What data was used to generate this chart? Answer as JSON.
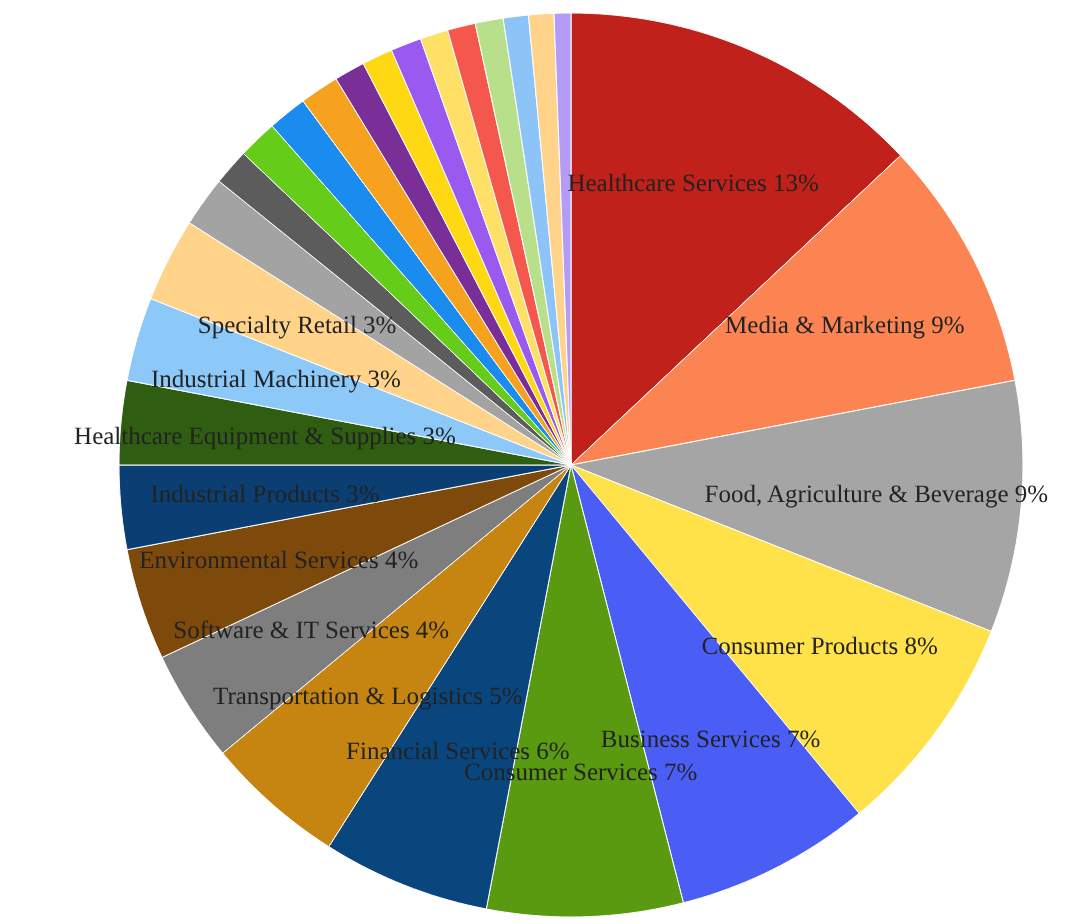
{
  "chart_data": {
    "type": "pie",
    "categories": [
      "Healthcare Services",
      "Media & Marketing",
      "Food, Agriculture & Beverage",
      "Consumer Products",
      "Business Services",
      "Consumer Services",
      "Financial Services",
      "Transportation & Logistics",
      "Software & IT Services",
      "Environmental Services",
      "Industrial Products",
      "Healthcare Equipment & Supplies",
      "Industrial Machinery",
      "Specialty Retail",
      null,
      null,
      null,
      null,
      null,
      null,
      null,
      null,
      null,
      null,
      null,
      null,
      null,
      null
    ],
    "values": [
      13,
      9,
      9,
      8,
      7,
      7,
      6,
      5,
      4,
      4,
      3,
      3,
      3,
      3,
      1.8,
      1.3,
      1.4,
      1.4,
      1.4,
      1.1,
      1.1,
      1.1,
      1.0,
      1.0,
      1.0,
      0.9,
      0.9,
      0.6
    ],
    "value_labels": [
      "13%",
      "9%",
      "9%",
      "8%",
      "7%",
      "7%",
      "6%",
      "5%",
      "4%",
      "4%",
      "3%",
      "3%",
      "3%",
      "3%",
      null,
      null,
      null,
      null,
      null,
      null,
      null,
      null,
      null,
      null,
      null,
      null,
      null,
      null
    ],
    "colors": [
      "#c0221b",
      "#fb8452",
      "#a5a5a5",
      "#ffe14a",
      "#4a5ef5",
      "#5a9a10",
      "#0a467e",
      "#c68510",
      "#7e7e7e",
      "#7e4a0c",
      "#0b3f73",
      "#2f5e12",
      "#8cc8f8",
      "#ffd38a",
      "#a3a3a3",
      "#5c5c5c",
      "#66cc1a",
      "#1a8cf0",
      "#f6a21e",
      "#7a2f98",
      "#ffd814",
      "#9a5af0",
      "#ffe066",
      "#f4584c",
      "#b8e08a",
      "#8cc4f8",
      "#ffd38a",
      "#b49cf6"
    ]
  }
}
